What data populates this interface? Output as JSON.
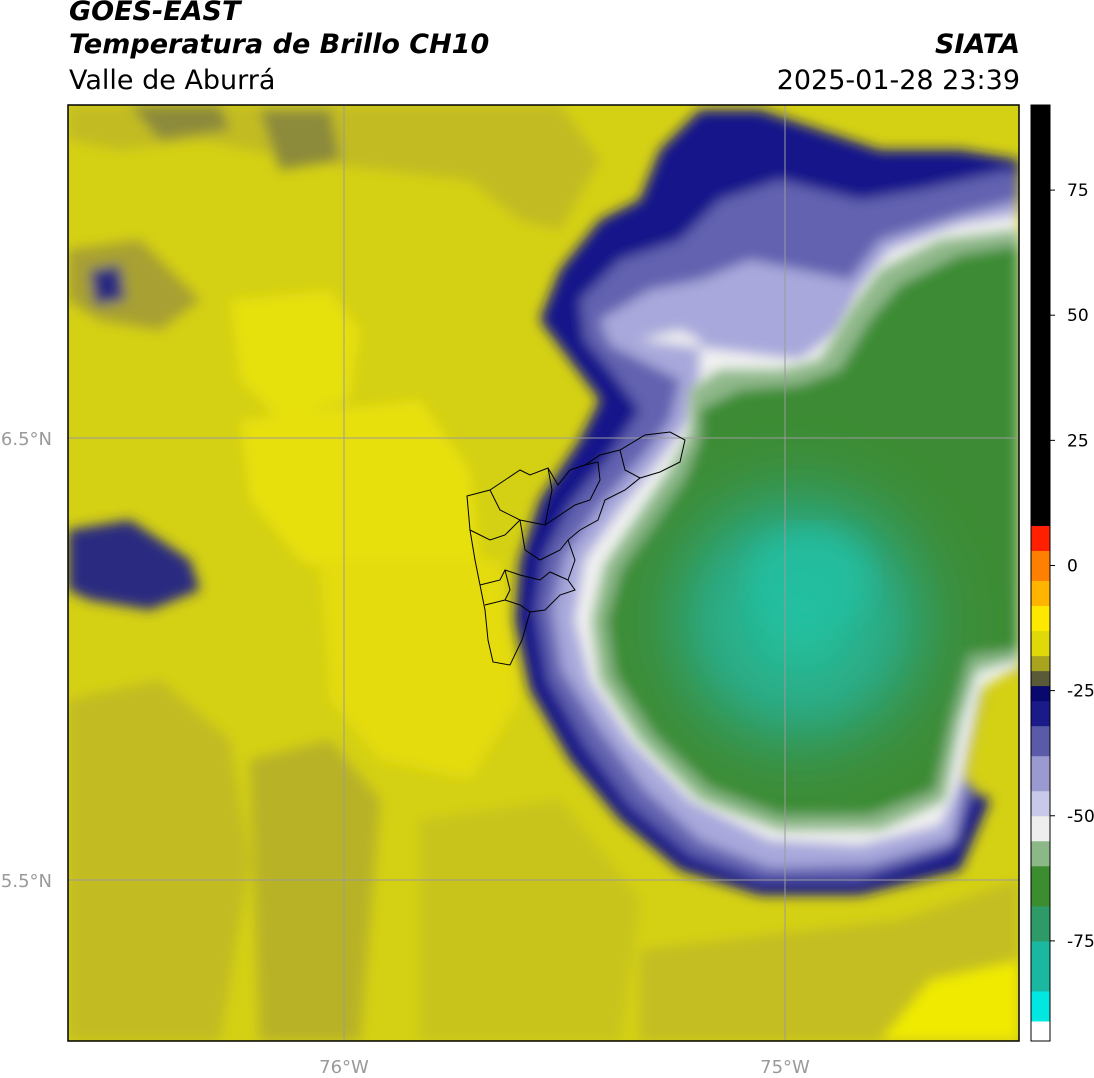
{
  "header": {
    "satellite": "GOES-EAST",
    "product": "Temperatura de Brillo CH10",
    "region": "Valle de Aburrá",
    "agency": "SIATA",
    "datetime": "2025-01-28 23:39"
  },
  "map": {
    "lat_ticks": [
      {
        "value": 6.5,
        "label": "6.5°N"
      },
      {
        "value": 5.5,
        "label": "5.5°N"
      }
    ],
    "lon_ticks": [
      {
        "value": -76.0,
        "label": "76°W"
      },
      {
        "value": -75.0,
        "label": "75°W"
      }
    ],
    "lon_range": [
      -76.62,
      -74.47
    ],
    "lat_range": [
      5.09,
      7.25
    ],
    "gridlines": true,
    "colors": {
      "background_warm": "#d9d618",
      "background_hot": "#ecec08",
      "background_dark": "#b8b224",
      "cloud_edge_navy": "#0a0a78",
      "cloud_lavender": "#9a9ad8",
      "cloud_white": "#f4f4f4",
      "cloud_green": "#3a8c36",
      "cloud_teal": "#28b898",
      "boundary": "#000000",
      "grid": "#9a9a9a"
    }
  },
  "colorbar": {
    "ticks": [
      {
        "value": 75,
        "label": "75"
      },
      {
        "value": 50,
        "label": "50"
      },
      {
        "value": 25,
        "label": "25"
      },
      {
        "value": 0,
        "label": "0"
      },
      {
        "value": -25,
        "label": "-25"
      },
      {
        "value": -50,
        "label": "-50"
      },
      {
        "value": -75,
        "label": "-75"
      }
    ],
    "range": [
      -95,
      92
    ],
    "segments": [
      {
        "from": -95,
        "to": -91,
        "color": "#ffffff"
      },
      {
        "from": -91,
        "to": -85,
        "color": "#00e8e0"
      },
      {
        "from": -85,
        "to": -75,
        "color": "#1ab8a0"
      },
      {
        "from": -75,
        "to": -68,
        "color": "#2e9a68"
      },
      {
        "from": -68,
        "to": -60,
        "color": "#3c8c30"
      },
      {
        "from": -60,
        "to": -55,
        "color": "#8cb888"
      },
      {
        "from": -55,
        "to": -50,
        "color": "#eeeeee"
      },
      {
        "from": -50,
        "to": -45,
        "color": "#c8c8e8"
      },
      {
        "from": -45,
        "to": -38,
        "color": "#9a9ad0"
      },
      {
        "from": -38,
        "to": -32,
        "color": "#5a5aa8"
      },
      {
        "from": -32,
        "to": -27,
        "color": "#1a1a88"
      },
      {
        "from": -27,
        "to": -24,
        "color": "#08086e"
      },
      {
        "from": -24,
        "to": -21,
        "color": "#5a5a38"
      },
      {
        "from": -21,
        "to": -18,
        "color": "#a8a420"
      },
      {
        "from": -18,
        "to": -13,
        "color": "#e0d808"
      },
      {
        "from": -13,
        "to": -8,
        "color": "#ffe800"
      },
      {
        "from": -8,
        "to": -3,
        "color": "#ffb400"
      },
      {
        "from": -3,
        "to": 3,
        "color": "#ff8000"
      },
      {
        "from": 3,
        "to": 8,
        "color": "#ff2000"
      },
      {
        "from": 8,
        "to": 92,
        "color": "#000000"
      }
    ]
  }
}
